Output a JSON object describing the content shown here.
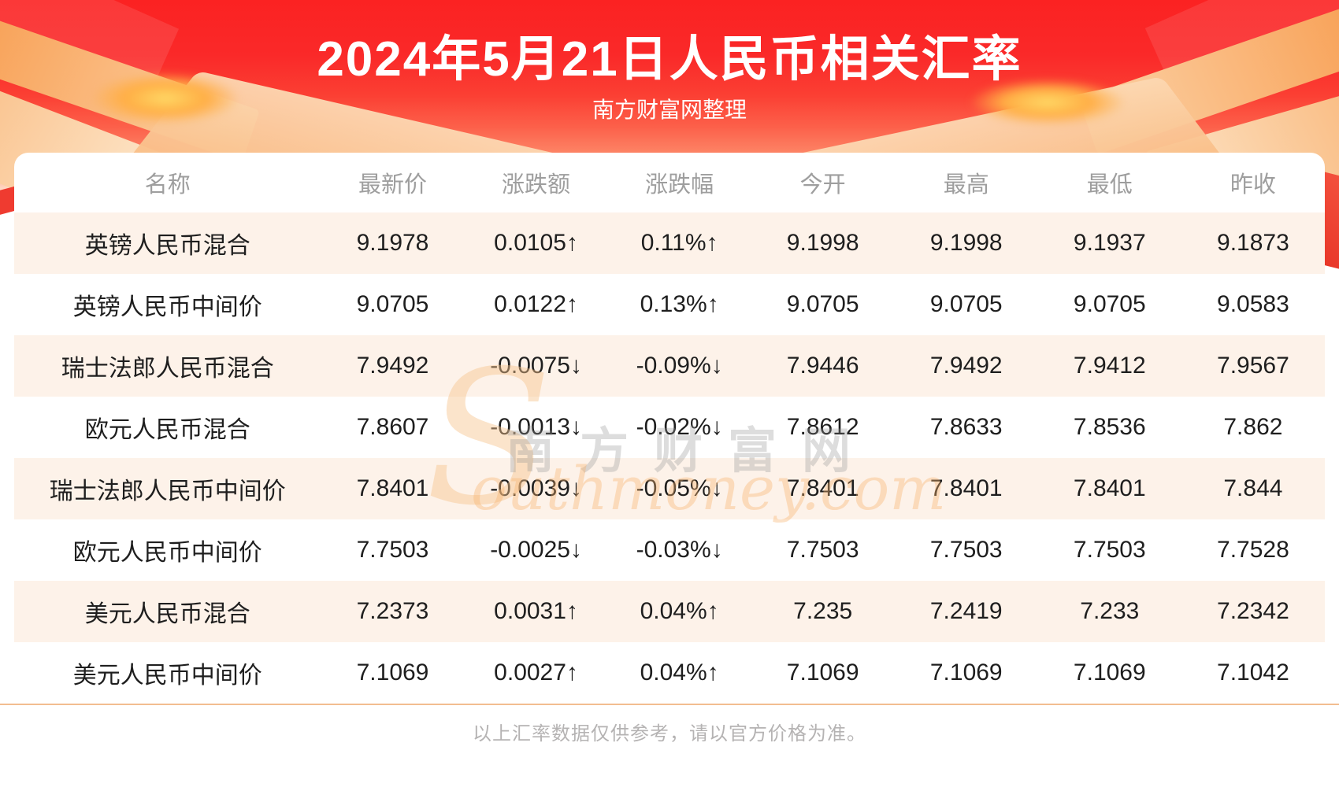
{
  "header": {
    "title": "2024年5月21日人民币相关汇率",
    "subtitle": "南方财富网整理"
  },
  "watermark": {
    "s": "S",
    "cn": "南方财富网",
    "en": "outhmoney.com"
  },
  "table": {
    "columns": [
      "名称",
      "最新价",
      "涨跌额",
      "涨跌幅",
      "今开",
      "最高",
      "最低",
      "昨收"
    ],
    "rows": [
      {
        "name": "英镑人民币混合",
        "last": "9.1978",
        "change": "0.0105↑",
        "pct": "0.11%↑",
        "open": "9.1998",
        "high": "9.1998",
        "low": "9.1937",
        "prev": "9.1873",
        "dir": "up"
      },
      {
        "name": "英镑人民币中间价",
        "last": "9.0705",
        "change": "0.0122↑",
        "pct": "0.13%↑",
        "open": "9.0705",
        "high": "9.0705",
        "low": "9.0705",
        "prev": "9.0583",
        "dir": "up"
      },
      {
        "name": "瑞士法郎人民币混合",
        "last": "7.9492",
        "change": "-0.0075↓",
        "pct": "-0.09%↓",
        "open": "7.9446",
        "high": "7.9492",
        "low": "7.9412",
        "prev": "7.9567",
        "dir": "down"
      },
      {
        "name": "欧元人民币混合",
        "last": "7.8607",
        "change": "-0.0013↓",
        "pct": "-0.02%↓",
        "open": "7.8612",
        "high": "7.8633",
        "low": "7.8536",
        "prev": "7.862",
        "dir": "down"
      },
      {
        "name": "瑞士法郎人民币中间价",
        "last": "7.8401",
        "change": "-0.0039↓",
        "pct": "-0.05%↓",
        "open": "7.8401",
        "high": "7.8401",
        "low": "7.8401",
        "prev": "7.844",
        "dir": "down"
      },
      {
        "name": "欧元人民币中间价",
        "last": "7.7503",
        "change": "-0.0025↓",
        "pct": "-0.03%↓",
        "open": "7.7503",
        "high": "7.7503",
        "low": "7.7503",
        "prev": "7.7528",
        "dir": "down"
      },
      {
        "name": "美元人民币混合",
        "last": "7.2373",
        "change": "0.0031↑",
        "pct": "0.04%↑",
        "open": "7.235",
        "high": "7.2419",
        "low": "7.233",
        "prev": "7.2342",
        "dir": "up"
      },
      {
        "name": "美元人民币中间价",
        "last": "7.1069",
        "change": "0.0027↑",
        "pct": "0.04%↑",
        "open": "7.1069",
        "high": "7.1069",
        "low": "7.1069",
        "prev": "7.1042",
        "dir": "up"
      }
    ]
  },
  "footer": {
    "disclaimer": "以上汇率数据仅供参考，请以官方价格为准。"
  },
  "colors": {
    "up": "#ee1111",
    "down": "#0c840c",
    "banner_red": "#fa2929",
    "row_alt": "#fdf2e9",
    "divider": "#f2bd90",
    "header_text": "#9e9e9e"
  },
  "chart_data": {
    "type": "table",
    "title": "2024年5月21日人民币相关汇率",
    "subtitle": "南方财富网整理",
    "columns": [
      "名称",
      "最新价",
      "涨跌额",
      "涨跌幅",
      "今开",
      "最高",
      "最低",
      "昨收"
    ],
    "rows": [
      [
        "英镑人民币混合",
        9.1978,
        0.0105,
        "0.11%",
        9.1998,
        9.1998,
        9.1937,
        9.1873
      ],
      [
        "英镑人民币中间价",
        9.0705,
        0.0122,
        "0.13%",
        9.0705,
        9.0705,
        9.0705,
        9.0583
      ],
      [
        "瑞士法郎人民币混合",
        7.9492,
        -0.0075,
        "-0.09%",
        7.9446,
        7.9492,
        7.9412,
        7.9567
      ],
      [
        "欧元人民币混合",
        7.8607,
        -0.0013,
        "-0.02%",
        7.8612,
        7.8633,
        7.8536,
        7.862
      ],
      [
        "瑞士法郎人民币中间价",
        7.8401,
        -0.0039,
        "-0.05%",
        7.8401,
        7.8401,
        7.8401,
        7.844
      ],
      [
        "欧元人民币中间价",
        7.7503,
        -0.0025,
        "-0.03%",
        7.7503,
        7.7503,
        7.7503,
        7.7528
      ],
      [
        "美元人民币混合",
        7.2373,
        0.0031,
        "0.04%",
        7.235,
        7.2419,
        7.233,
        7.2342
      ],
      [
        "美元人民币中间价",
        7.1069,
        0.0027,
        "0.04%",
        7.1069,
        7.1069,
        7.1069,
        7.1042
      ]
    ]
  }
}
